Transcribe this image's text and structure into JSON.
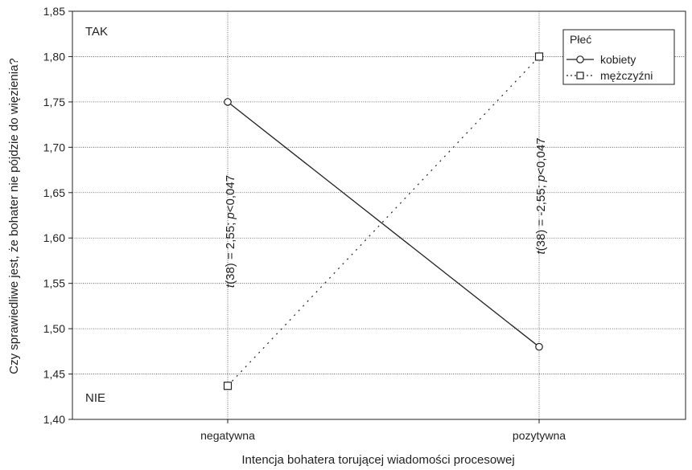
{
  "chart_data": {
    "type": "line",
    "xlabel": "Intencja bohatera torującej wiadomości procesowej",
    "ylabel": "Czy sprawiedliwe jest, że bohater nie pójdzie do więzienia?",
    "categories": [
      "negatywna",
      "pozytywna"
    ],
    "ylim": [
      1.4,
      1.85
    ],
    "yticks": [
      "1,40",
      "1,45",
      "1,50",
      "1,55",
      "1,60",
      "1,65",
      "1,70",
      "1,75",
      "1,80",
      "1,85"
    ],
    "grid": true,
    "legend_title": "Płeć",
    "legend_position": "top-right",
    "series": [
      {
        "name": "kobiety",
        "values": [
          1.75,
          1.48
        ],
        "line_style": "solid",
        "marker": "circle"
      },
      {
        "name": "mężczyźni",
        "values": [
          1.437,
          1.8
        ],
        "line_style": "dotted",
        "marker": "square"
      }
    ],
    "corner_labels": {
      "top": "TAK",
      "bottom": "NIE"
    },
    "annotations": [
      {
        "category": "negatywna",
        "t": "t",
        "text": "(38) = 2,55; ",
        "p": "p",
        "ptext": "<0,047"
      },
      {
        "category": "pozytywna",
        "t": "t",
        "text": "(38) = -2,55; ",
        "p": "p",
        "ptext": "<0,047"
      }
    ]
  }
}
